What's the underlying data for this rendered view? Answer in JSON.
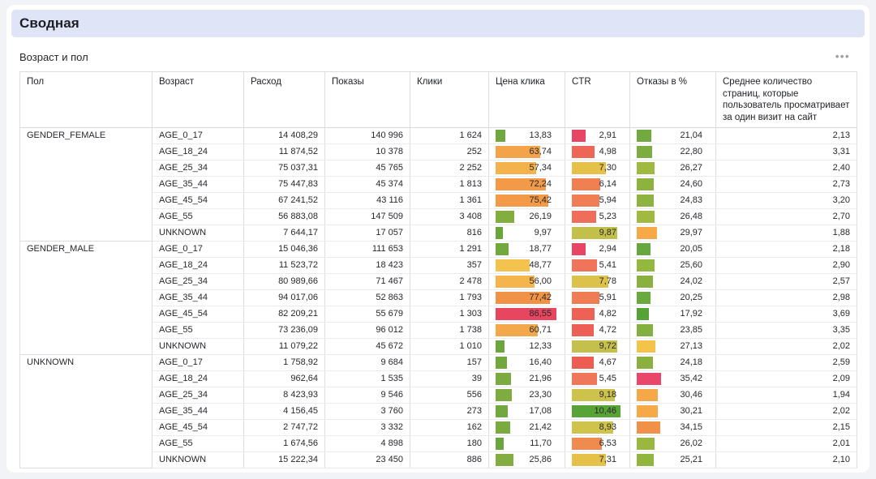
{
  "page": {
    "title": "Сводная",
    "widget_title": "Возраст и пол"
  },
  "icons": {
    "widget_menu": "•••"
  },
  "colors": {
    "banner_bg": "#e0e4f7",
    "card_bg": "#ffffff",
    "page_bg": "#f2f3f6"
  },
  "table": {
    "columns": [
      {
        "key": "gender",
        "label": "Пол"
      },
      {
        "key": "age",
        "label": "Возраст"
      },
      {
        "key": "spend",
        "label": "Расход"
      },
      {
        "key": "impressions",
        "label": "Показы"
      },
      {
        "key": "clicks",
        "label": "Клики"
      },
      {
        "key": "cpc",
        "label": "Цена клика"
      },
      {
        "key": "ctr",
        "label": "CTR"
      },
      {
        "key": "bounce",
        "label": "Отказы в %"
      },
      {
        "key": "avg_pages",
        "label": "Среднее количество страниц, которые пользователь просматривает за один визит на сайт"
      }
    ],
    "groups": [
      {
        "gender": "GENDER_FEMALE",
        "rows": [
          {
            "age": "AGE_0_17",
            "spend": "14 408,29",
            "impressions": "140 996",
            "clicks": "1 624",
            "cpc": {
              "value": "13,83",
              "num": 13.83,
              "color": "#6fa83e"
            },
            "ctr": {
              "value": "2,91",
              "num": 2.91,
              "color": "#e84464"
            },
            "bounce": {
              "value": "21,04",
              "num": 21.04,
              "color": "#73aa40"
            },
            "avg_pages": "2,13"
          },
          {
            "age": "AGE_18_24",
            "spend": "11 874,52",
            "impressions": "10 378",
            "clicks": "252",
            "cpc": {
              "value": "63,74",
              "num": 63.74,
              "color": "#f3a44a"
            },
            "ctr": {
              "value": "4,98",
              "num": 4.98,
              "color": "#ee6656"
            },
            "bounce": {
              "value": "22,80",
              "num": 22.8,
              "color": "#7dac41"
            },
            "avg_pages": "3,31"
          },
          {
            "age": "AGE_25_34",
            "spend": "75 037,31",
            "impressions": "45 765",
            "clicks": "2 252",
            "cpc": {
              "value": "57,34",
              "num": 57.34,
              "color": "#f4b24d"
            },
            "ctr": {
              "value": "7,30",
              "num": 7.3,
              "color": "#e6c14a"
            },
            "bounce": {
              "value": "26,27",
              "num": 26.27,
              "color": "#a0b941"
            },
            "avg_pages": "2,40"
          },
          {
            "age": "AGE_35_44",
            "spend": "75 447,83",
            "impressions": "45 374",
            "clicks": "1 813",
            "cpc": {
              "value": "72,24",
              "num": 72.24,
              "color": "#f29a48"
            },
            "ctr": {
              "value": "6,14",
              "num": 6.14,
              "color": "#f08052"
            },
            "bounce": {
              "value": "24,60",
              "num": 24.6,
              "color": "#8db23f"
            },
            "avg_pages": "2,73"
          },
          {
            "age": "AGE_45_54",
            "spend": "67 241,52",
            "impressions": "43 116",
            "clicks": "1 361",
            "cpc": {
              "value": "75,42",
              "num": 75.42,
              "color": "#f29a48"
            },
            "ctr": {
              "value": "5,94",
              "num": 5.94,
              "color": "#f07d54"
            },
            "bounce": {
              "value": "24,83",
              "num": 24.83,
              "color": "#8fb340"
            },
            "avg_pages": "3,20"
          },
          {
            "age": "AGE_55",
            "spend": "56 883,08",
            "impressions": "147 509",
            "clicks": "3 408",
            "cpc": {
              "value": "26,19",
              "num": 26.19,
              "color": "#84ad40"
            },
            "ctr": {
              "value": "5,23",
              "num": 5.23,
              "color": "#ee6e59"
            },
            "bounce": {
              "value": "26,48",
              "num": 26.48,
              "color": "#a2b941"
            },
            "avg_pages": "2,70"
          },
          {
            "age": "UNKNOWN",
            "spend": "7 644,17",
            "impressions": "17 057",
            "clicks": "816",
            "cpc": {
              "value": "9,97",
              "num": 9.97,
              "color": "#68a63c"
            },
            "ctr": {
              "value": "9,87",
              "num": 9.87,
              "color": "#c2bf4a"
            },
            "bounce": {
              "value": "29,97",
              "num": 29.97,
              "color": "#f5a947"
            },
            "avg_pages": "1,88"
          }
        ]
      },
      {
        "gender": "GENDER_MALE",
        "rows": [
          {
            "age": "AGE_0_17",
            "spend": "15 046,36",
            "impressions": "111 653",
            "clicks": "1 291",
            "cpc": {
              "value": "18,77",
              "num": 18.77,
              "color": "#72a93f"
            },
            "ctr": {
              "value": "2,94",
              "num": 2.94,
              "color": "#e84464"
            },
            "bounce": {
              "value": "20,05",
              "num": 20.05,
              "color": "#66a83e"
            },
            "avg_pages": "2,18"
          },
          {
            "age": "AGE_18_24",
            "spend": "11 523,72",
            "impressions": "18 423",
            "clicks": "357",
            "cpc": {
              "value": "48,77",
              "num": 48.77,
              "color": "#f4c34f"
            },
            "ctr": {
              "value": "5,41",
              "num": 5.41,
              "color": "#ef745a"
            },
            "bounce": {
              "value": "25,60",
              "num": 25.6,
              "color": "#94b83f"
            },
            "avg_pages": "2,90"
          },
          {
            "age": "AGE_25_34",
            "spend": "80 989,66",
            "impressions": "71 467",
            "clicks": "2 478",
            "cpc": {
              "value": "56,00",
              "num": 56.0,
              "color": "#f4b54d"
            },
            "ctr": {
              "value": "7,78",
              "num": 7.78,
              "color": "#dcc24b"
            },
            "bounce": {
              "value": "24,02",
              "num": 24.02,
              "color": "#88b13f"
            },
            "avg_pages": "2,57"
          },
          {
            "age": "AGE_35_44",
            "spend": "94 017,06",
            "impressions": "52 863",
            "clicks": "1 793",
            "cpc": {
              "value": "77,42",
              "num": 77.42,
              "color": "#f19347"
            },
            "ctr": {
              "value": "5,91",
              "num": 5.91,
              "color": "#f07c54"
            },
            "bounce": {
              "value": "20,25",
              "num": 20.25,
              "color": "#6aa93e"
            },
            "avg_pages": "2,98"
          },
          {
            "age": "AGE_45_54",
            "spend": "82 209,21",
            "impressions": "55 679",
            "clicks": "1 303",
            "cpc": {
              "value": "86,55",
              "num": 86.55,
              "color": "#e8455f"
            },
            "ctr": {
              "value": "4,82",
              "num": 4.82,
              "color": "#ee6155"
            },
            "bounce": {
              "value": "17,92",
              "num": 17.92,
              "color": "#55a337"
            },
            "avg_pages": "3,69"
          },
          {
            "age": "AGE_55",
            "spend": "73 236,09",
            "impressions": "96 012",
            "clicks": "1 738",
            "cpc": {
              "value": "60,71",
              "num": 60.71,
              "color": "#f3a84b"
            },
            "ctr": {
              "value": "4,72",
              "num": 4.72,
              "color": "#ed5f54"
            },
            "bounce": {
              "value": "23,85",
              "num": 23.85,
              "color": "#83b03f"
            },
            "avg_pages": "3,35"
          },
          {
            "age": "UNKNOWN",
            "spend": "11 079,22",
            "impressions": "45 672",
            "clicks": "1 010",
            "cpc": {
              "value": "12,33",
              "num": 12.33,
              "color": "#6ca73d"
            },
            "ctr": {
              "value": "9,72",
              "num": 9.72,
              "color": "#c4c04b"
            },
            "bounce": {
              "value": "27,13",
              "num": 27.13,
              "color": "#f4c34a"
            },
            "avg_pages": "2,02"
          }
        ]
      },
      {
        "gender": "UNKNOWN",
        "rows": [
          {
            "age": "AGE_0_17",
            "spend": "1 758,92",
            "impressions": "9 684",
            "clicks": "157",
            "cpc": {
              "value": "16,40",
              "num": 16.4,
              "color": "#70a83e"
            },
            "ctr": {
              "value": "4,67",
              "num": 4.67,
              "color": "#ed5e52"
            },
            "bounce": {
              "value": "24,18",
              "num": 24.18,
              "color": "#8ab13f"
            },
            "avg_pages": "2,59"
          },
          {
            "age": "AGE_18_24",
            "spend": "962,64",
            "impressions": "1 535",
            "clicks": "39",
            "cpc": {
              "value": "21,96",
              "num": 21.96,
              "color": "#7bab40"
            },
            "ctr": {
              "value": "5,45",
              "num": 5.45,
              "color": "#ef755b"
            },
            "bounce": {
              "value": "35,42",
              "num": 35.42,
              "color": "#e9466a"
            },
            "avg_pages": "2,09"
          },
          {
            "age": "AGE_25_34",
            "spend": "8 423,93",
            "impressions": "9 546",
            "clicks": "556",
            "cpc": {
              "value": "23,30",
              "num": 23.3,
              "color": "#7eac41"
            },
            "ctr": {
              "value": "9,18",
              "num": 9.18,
              "color": "#cdc24c"
            },
            "bounce": {
              "value": "30,46",
              "num": 30.46,
              "color": "#f5a847"
            },
            "avg_pages": "1,94"
          },
          {
            "age": "AGE_35_44",
            "spend": "4 156,45",
            "impressions": "3 760",
            "clicks": "273",
            "cpc": {
              "value": "17,08",
              "num": 17.08,
              "color": "#71a83f"
            },
            "ctr": {
              "value": "10,46",
              "num": 10.46,
              "color": "#57a336"
            },
            "bounce": {
              "value": "30,21",
              "num": 30.21,
              "color": "#f5a947"
            },
            "avg_pages": "2,02"
          },
          {
            "age": "AGE_45_54",
            "spend": "2 747,72",
            "impressions": "3 332",
            "clicks": "162",
            "cpc": {
              "value": "21,42",
              "num": 21.42,
              "color": "#7aab40"
            },
            "ctr": {
              "value": "8,93",
              "num": 8.93,
              "color": "#d0c34c"
            },
            "bounce": {
              "value": "34,15",
              "num": 34.15,
              "color": "#f19048"
            },
            "avg_pages": "2,15"
          },
          {
            "age": "AGE_55",
            "spend": "1 674,56",
            "impressions": "4 898",
            "clicks": "180",
            "cpc": {
              "value": "11,70",
              "num": 11.7,
              "color": "#6aa63d"
            },
            "ctr": {
              "value": "6,53",
              "num": 6.53,
              "color": "#f08b50"
            },
            "bounce": {
              "value": "26,02",
              "num": 26.02,
              "color": "#9cb740"
            },
            "avg_pages": "2,01"
          },
          {
            "age": "UNKNOWN",
            "spend": "15 222,34",
            "impressions": "23 450",
            "clicks": "886",
            "cpc": {
              "value": "25,86",
              "num": 25.86,
              "color": "#83ad41"
            },
            "ctr": {
              "value": "7,31",
              "num": 7.31,
              "color": "#e5c14a"
            },
            "bounce": {
              "value": "25,21",
              "num": 25.21,
              "color": "#91b53f"
            },
            "avg_pages": "2,10"
          }
        ]
      }
    ]
  }
}
